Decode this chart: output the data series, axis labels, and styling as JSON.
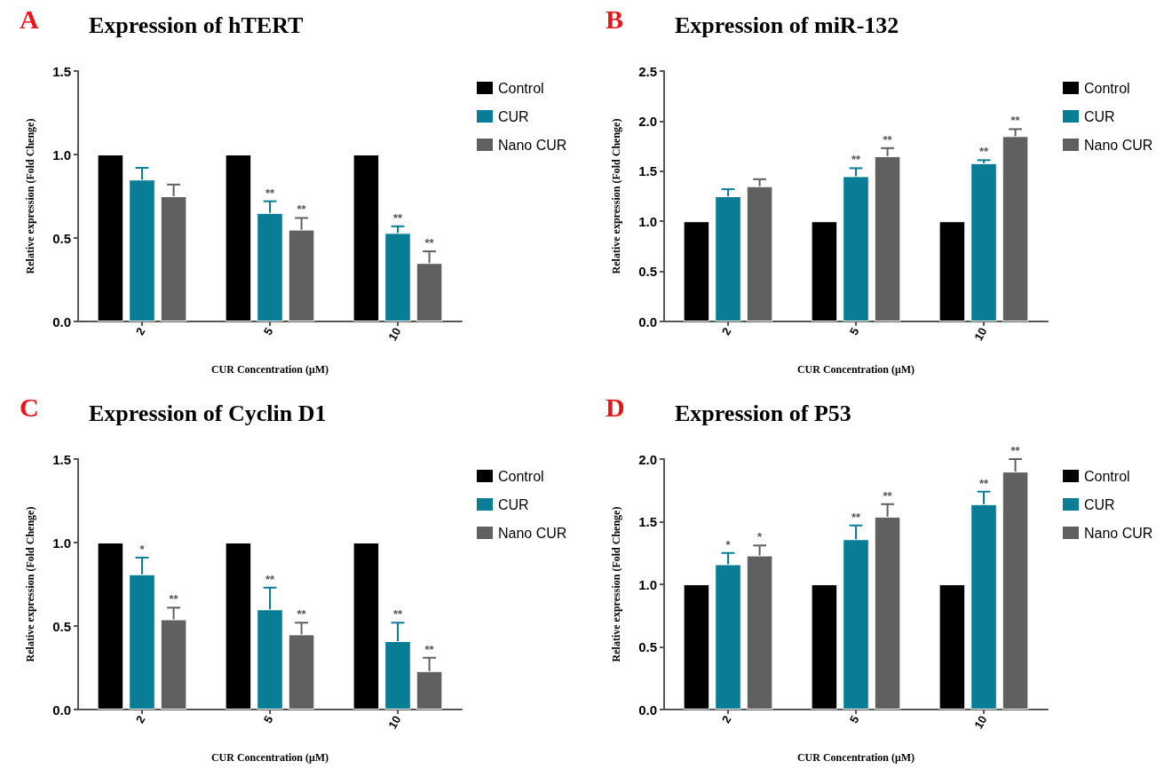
{
  "chart_data": [
    {
      "type": "bar",
      "title": "Expression of hTERT",
      "xlabel": "CUR Concentration (μM)",
      "ylabel": "Relative expression (Fold Chenge)",
      "categories": [
        "2",
        "5",
        "10"
      ],
      "ylim": [
        0,
        1.5
      ],
      "yticks": [
        {
          "value": 0,
          "label": "0.0"
        },
        0.5,
        {
          "value": 1,
          "label": "1.0"
        },
        1.5
      ],
      "legend": "right",
      "grid": false,
      "series": [
        {
          "name": "Control",
          "color": "#000000",
          "values": [
            1,
            1,
            1
          ]
        },
        {
          "name": "CUR",
          "color": "#0a7d96",
          "values": [
            0.85,
            0.65,
            0.53
          ],
          "errors": [
            [
              0.85,
              0.92
            ],
            [
              0.65,
              0.72
            ],
            [
              0.53,
              0.57
            ]
          ],
          "value_labels": [
            null,
            "**",
            "**"
          ]
        },
        {
          "name": "Nano CUR",
          "color": "#606060",
          "values": [
            0.75,
            0.55,
            0.35
          ],
          "errors": [
            [
              0.75,
              0.82
            ],
            [
              0.55,
              0.62
            ],
            [
              0.35,
              0.42
            ]
          ],
          "value_labels": [
            null,
            "**",
            "**"
          ]
        }
      ],
      "annotations": [
        "A"
      ]
    },
    {
      "type": "bar",
      "title": "Expression of miR-132",
      "xlabel": "CUR Concentration (μM)",
      "ylabel": "Relative expression (Fold Chenge)",
      "categories": [
        "2",
        "5",
        "10"
      ],
      "ylim": [
        0,
        2.5
      ],
      "yticks": [
        {
          "value": 0,
          "label": "0.0"
        },
        0.5,
        {
          "value": 1,
          "label": "1.0"
        },
        1.5,
        {
          "value": 2,
          "label": "2.0"
        },
        2.5
      ],
      "legend": "right",
      "grid": false,
      "series": [
        {
          "name": "Control",
          "color": "#000000",
          "values": [
            1,
            1,
            1
          ]
        },
        {
          "name": "CUR",
          "color": "#0a7d96",
          "values": [
            1.25,
            1.45,
            1.58
          ],
          "errors": [
            [
              1.25,
              1.32
            ],
            [
              1.45,
              1.53
            ],
            [
              1.58,
              1.61
            ]
          ],
          "value_labels": [
            null,
            "**",
            "**"
          ]
        },
        {
          "name": "Nano CUR",
          "color": "#606060",
          "values": [
            1.35,
            1.65,
            1.85
          ],
          "errors": [
            [
              1.35,
              1.42
            ],
            [
              1.65,
              1.73
            ],
            [
              1.85,
              1.92
            ]
          ],
          "value_labels": [
            null,
            "**",
            "**"
          ]
        }
      ],
      "annotations": [
        "B"
      ]
    },
    {
      "type": "bar",
      "title": "Expression of Cyclin D1",
      "xlabel": "CUR Concentration (μM)",
      "ylabel": "Relative expression (Fold Chenge)",
      "categories": [
        "2",
        "5",
        "10"
      ],
      "ylim": [
        0,
        1.5
      ],
      "yticks": [
        {
          "value": 0,
          "label": "0.0"
        },
        0.5,
        {
          "value": 1,
          "label": "1.0"
        },
        1.5
      ],
      "legend": "right",
      "grid": false,
      "series": [
        {
          "name": "Control",
          "color": "#000000",
          "values": [
            1,
            1,
            1
          ]
        },
        {
          "name": "CUR",
          "color": "#0a7d96",
          "values": [
            0.81,
            0.6,
            0.41
          ],
          "errors": [
            [
              0.81,
              0.91
            ],
            [
              0.6,
              0.73
            ],
            [
              0.41,
              0.52
            ]
          ],
          "value_labels": [
            "*",
            "**",
            "**"
          ]
        },
        {
          "name": "Nano CUR",
          "color": "#606060",
          "values": [
            0.54,
            0.45,
            0.23
          ],
          "errors": [
            [
              0.54,
              0.61
            ],
            [
              0.45,
              0.52
            ],
            [
              0.23,
              0.31
            ]
          ],
          "value_labels": [
            "**",
            "**",
            "**"
          ]
        }
      ],
      "annotations": [
        "C"
      ]
    },
    {
      "type": "bar",
      "title": "Expression of P53",
      "xlabel": "CUR Concentration (μM)",
      "ylabel": "Relative expression (Fold Chenge)",
      "categories": [
        "2",
        "5",
        "10"
      ],
      "ylim": [
        0,
        2
      ],
      "yticks": [
        {
          "value": 0,
          "label": "0.0"
        },
        0.5,
        {
          "value": 1,
          "label": "1.0"
        },
        1.5,
        {
          "value": 2,
          "label": "2.0"
        }
      ],
      "legend": "right",
      "grid": false,
      "series": [
        {
          "name": "Control",
          "color": "#000000",
          "values": [
            1,
            1,
            1
          ]
        },
        {
          "name": "CUR",
          "color": "#0a7d96",
          "values": [
            1.16,
            1.36,
            1.64
          ],
          "errors": [
            [
              1.16,
              1.25
            ],
            [
              1.36,
              1.47
            ],
            [
              1.64,
              1.74
            ]
          ],
          "value_labels": [
            "*",
            "**",
            "**"
          ]
        },
        {
          "name": "Nano CUR",
          "color": "#606060",
          "values": [
            1.23,
            1.54,
            1.9
          ],
          "errors": [
            [
              1.23,
              1.31
            ],
            [
              1.54,
              1.64
            ],
            [
              1.9,
              2.0
            ]
          ],
          "value_labels": [
            "*",
            "**",
            "**"
          ]
        }
      ],
      "annotations": [
        "D"
      ]
    }
  ]
}
